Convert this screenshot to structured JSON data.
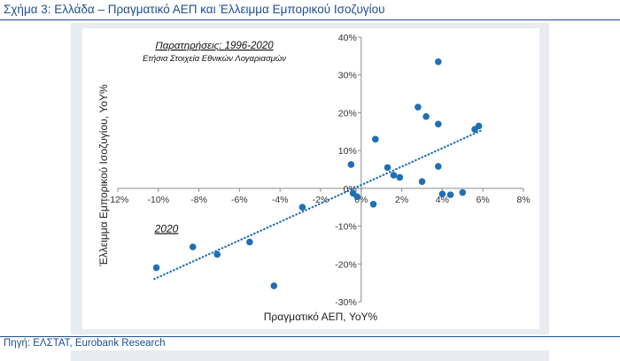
{
  "header": {
    "title": "Σχήμα 3: Ελλάδα – Πραγματικό ΑΕΠ και Έλλειμμα Εμπορικού Ισοζυγίου"
  },
  "footer": {
    "source": "Πηγή: ΕΛΣΤΑΤ, Eurobank Research"
  },
  "chart_data": {
    "type": "scatter",
    "title": "",
    "xlabel": "Πραγματικό ΑΕΠ, YoY%",
    "ylabel": "Έλλειμμα Εμπορικού Ισοζυγίου, YoY%",
    "xlim": [
      -12,
      8
    ],
    "ylim": [
      -30,
      40
    ],
    "xticks": [
      -12,
      -10,
      -8,
      -6,
      -4,
      -2,
      0,
      2,
      4,
      6,
      8
    ],
    "yticks": [
      -30,
      -20,
      -10,
      0,
      10,
      20,
      30,
      40
    ],
    "xtick_labels": [
      "-12%",
      "-10%",
      "-8%",
      "-6%",
      "-4%",
      "-2%",
      "0%",
      "2%",
      "4%",
      "6%",
      "8%"
    ],
    "ytick_labels": [
      "-30%",
      "-20%",
      "-10%",
      "0%",
      "10%",
      "20%",
      "30%",
      "40%"
    ],
    "grid": false,
    "marker_color": "#1f6fb5",
    "trendline": {
      "x": [
        -10.2,
        6.0
      ],
      "y": [
        -24,
        15.5
      ],
      "color": "#1f6fb5",
      "style": "dotted"
    },
    "annotations": [
      {
        "text": "Παρατηρήσεις: 1996-2020",
        "underline": true
      },
      {
        "text": "Ετήσια Στοιχεία Εθνικών Λογαριασμών",
        "underline": false
      },
      {
        "text": "2020",
        "underline": true,
        "x": -9.6,
        "y": -11.6
      }
    ],
    "points": [
      {
        "x": -10.1,
        "y": -21
      },
      {
        "x": -8.3,
        "y": -15.5
      },
      {
        "x": -7.1,
        "y": -17.5
      },
      {
        "x": -5.5,
        "y": -14.2
      },
      {
        "x": -4.3,
        "y": -25.8
      },
      {
        "x": -2.9,
        "y": -5
      },
      {
        "x": -0.5,
        "y": 6.3
      },
      {
        "x": -0.4,
        "y": -1.3
      },
      {
        "x": -0.2,
        "y": -2.2
      },
      {
        "x": 0.6,
        "y": -4.2
      },
      {
        "x": 0.7,
        "y": 13
      },
      {
        "x": 1.3,
        "y": 5.5
      },
      {
        "x": 1.6,
        "y": 3.5
      },
      {
        "x": 1.9,
        "y": 2.9
      },
      {
        "x": 2.8,
        "y": 21.5
      },
      {
        "x": 3.0,
        "y": 1.8
      },
      {
        "x": 3.2,
        "y": 19
      },
      {
        "x": 3.8,
        "y": 33.5
      },
      {
        "x": 3.8,
        "y": 17
      },
      {
        "x": 3.8,
        "y": 5.8
      },
      {
        "x": 4.0,
        "y": -1.5
      },
      {
        "x": 4.4,
        "y": -1.7
      },
      {
        "x": 5.0,
        "y": -1.1
      },
      {
        "x": 5.6,
        "y": 15.6
      },
      {
        "x": 5.8,
        "y": 16.5
      }
    ]
  }
}
